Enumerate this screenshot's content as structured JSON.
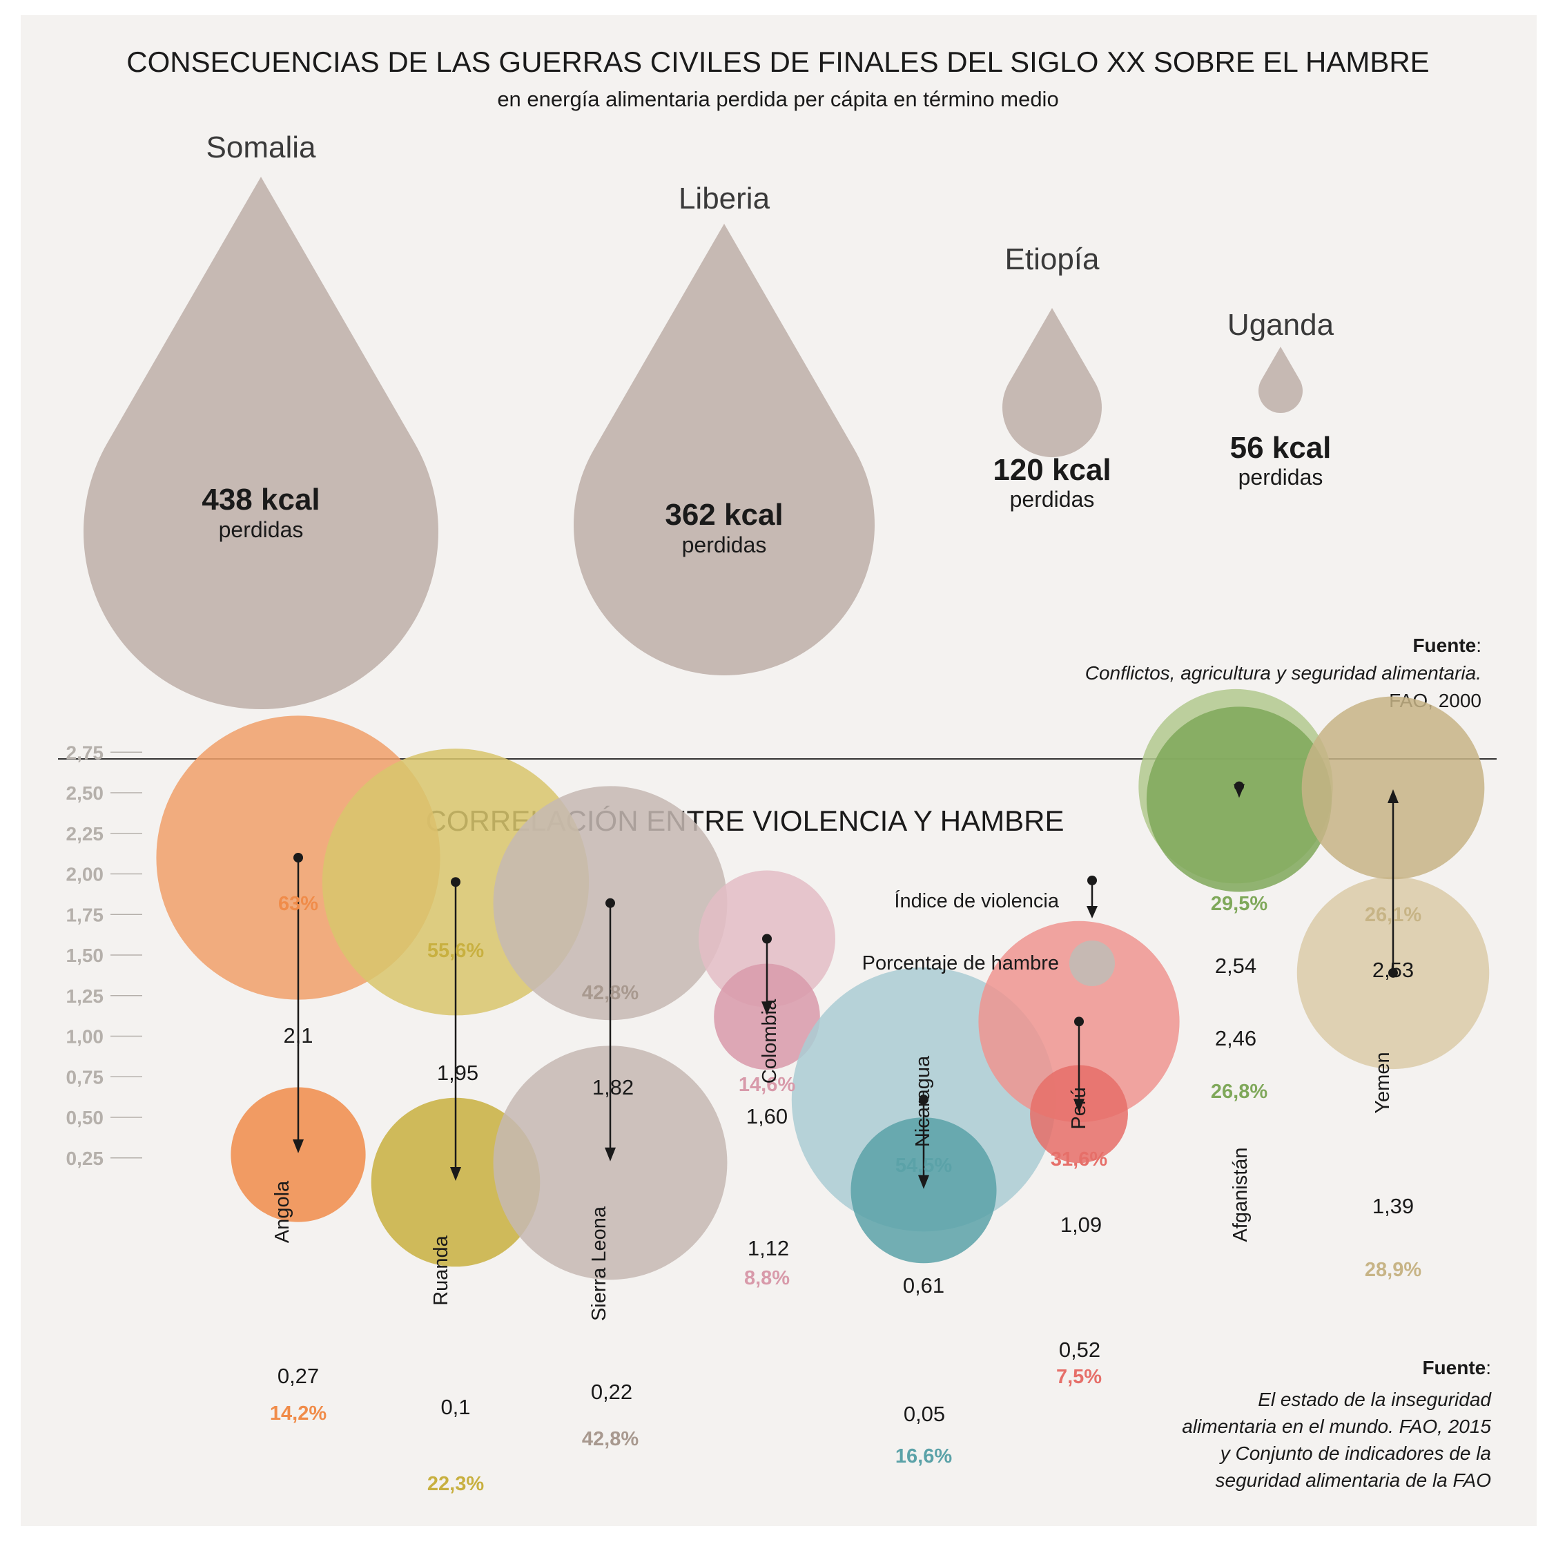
{
  "top": {
    "title": "CONSECUENCIAS DE LAS GUERRAS CIVILES DE FINALES DEL SIGLO XX SOBRE EL HAMBRE",
    "subtitle": "en energía alimentaria perdida per cápita en término medio",
    "drop_color": "#c6b9b3",
    "source_label": "Fuente",
    "source_lines": [
      "Conflictos, agricultura y seguridad alimentaria.",
      "FAO, 2000"
    ]
  },
  "chart_data": [
    {
      "type": "proportional-drops",
      "unit_label": "perdidas",
      "items": [
        {
          "country": "Somalia",
          "value": 438,
          "label": "438 kcal"
        },
        {
          "country": "Liberia",
          "value": 362,
          "label": "362 kcal"
        },
        {
          "country": "Etiopía",
          "value": 120,
          "label": "120 kcal"
        },
        {
          "country": "Uganda",
          "value": 56,
          "label": "56 kcal"
        }
      ]
    },
    {
      "type": "scatter",
      "title": "CORRELACIÓN ENTRE VIOLENCIA Y HAMBRE",
      "yticks": [
        "2,75",
        "2,50",
        "2,25",
        "2,00",
        "1,75",
        "1,50",
        "1,25",
        "1,00",
        "0,75",
        "0,50",
        "0,25"
      ],
      "ylim": [
        0,
        2.75
      ],
      "legend": {
        "violence": "Índice de violencia",
        "hunger": "Porcentaje de hambre"
      },
      "countries": [
        {
          "name": "Angola",
          "color": "#f0a06a",
          "dark": "#f08c4a",
          "from": {
            "v": 2.1,
            "label": "2,1",
            "pct": 63,
            "pct_label": "63%"
          },
          "to": {
            "v": 0.27,
            "label": "0,27",
            "pct": 14.2,
            "pct_label": "14,2%"
          }
        },
        {
          "name": "Ruanda",
          "color": "#d8c66c",
          "dark": "#c8b040",
          "from": {
            "v": 1.95,
            "label": "1,95",
            "pct": 55.6,
            "pct_label": "55,6%"
          },
          "to": {
            "v": 0.1,
            "label": "0,1",
            "pct": 22.3,
            "pct_label": "22,3%"
          }
        },
        {
          "name": "Sierra Leona",
          "color": "#c6b9b3",
          "dark": "#a8998f",
          "from": {
            "v": 1.82,
            "label": "1,82",
            "pct": 42.8,
            "pct_label": "42,8%"
          },
          "to": {
            "v": 0.22,
            "label": "0,22",
            "pct": 42.8,
            "pct_label": "42,8%"
          }
        },
        {
          "name": "Colombia",
          "color": "#e3bdc6",
          "dark": "#d89aaa",
          "from": {
            "v": 1.6,
            "label": "1,60",
            "pct": 14.6,
            "pct_label": "14,6%"
          },
          "to": {
            "v": 1.12,
            "label": "1,12",
            "pct": 8.8,
            "pct_label": "8,8%"
          }
        },
        {
          "name": "Nicaragua",
          "color": "#aacdd3",
          "dark": "#5ba2a8",
          "from": {
            "v": 0.61,
            "label": "0,61",
            "pct": 54.5,
            "pct_label": "54,5%"
          },
          "to": {
            "v": 0.05,
            "label": "0,05",
            "pct": 16.6,
            "pct_label": "16,6%"
          }
        },
        {
          "name": "Perú",
          "color": "#ee9590",
          "dark": "#e66f69",
          "from": {
            "v": 1.09,
            "label": "1,09",
            "pct": 31.6,
            "pct_label": "31,6%"
          },
          "to": {
            "v": 0.52,
            "label": "0,52",
            "pct": 7.5,
            "pct_label": "7,5%"
          }
        },
        {
          "name": "Afganistán",
          "color": "#b2c98e",
          "dark": "#7fa85a",
          "from": {
            "v": 2.54,
            "label": "2,54",
            "pct": 29.5,
            "pct_label": "29,5%"
          },
          "to": {
            "v": 2.46,
            "label": "2,46",
            "pct": 26.8,
            "pct_label": "26,8%"
          }
        },
        {
          "name": "Yemen",
          "color": "#dbcba8",
          "dark": "#c7b486",
          "from": {
            "v": 1.39,
            "label": "1,39",
            "pct": 28.9,
            "pct_label": "28,9%"
          },
          "to": {
            "v": 2.53,
            "label": "2,53",
            "pct": 26.1,
            "pct_label": "26,1%"
          }
        }
      ]
    }
  ],
  "bottom": {
    "source_label": "Fuente",
    "source_lines": [
      "El estado de la inseguridad",
      "alimentaria en el mundo. FAO, 2015",
      "y Conjunto de indicadores de la",
      "seguridad alimentaria de la FAO"
    ]
  }
}
